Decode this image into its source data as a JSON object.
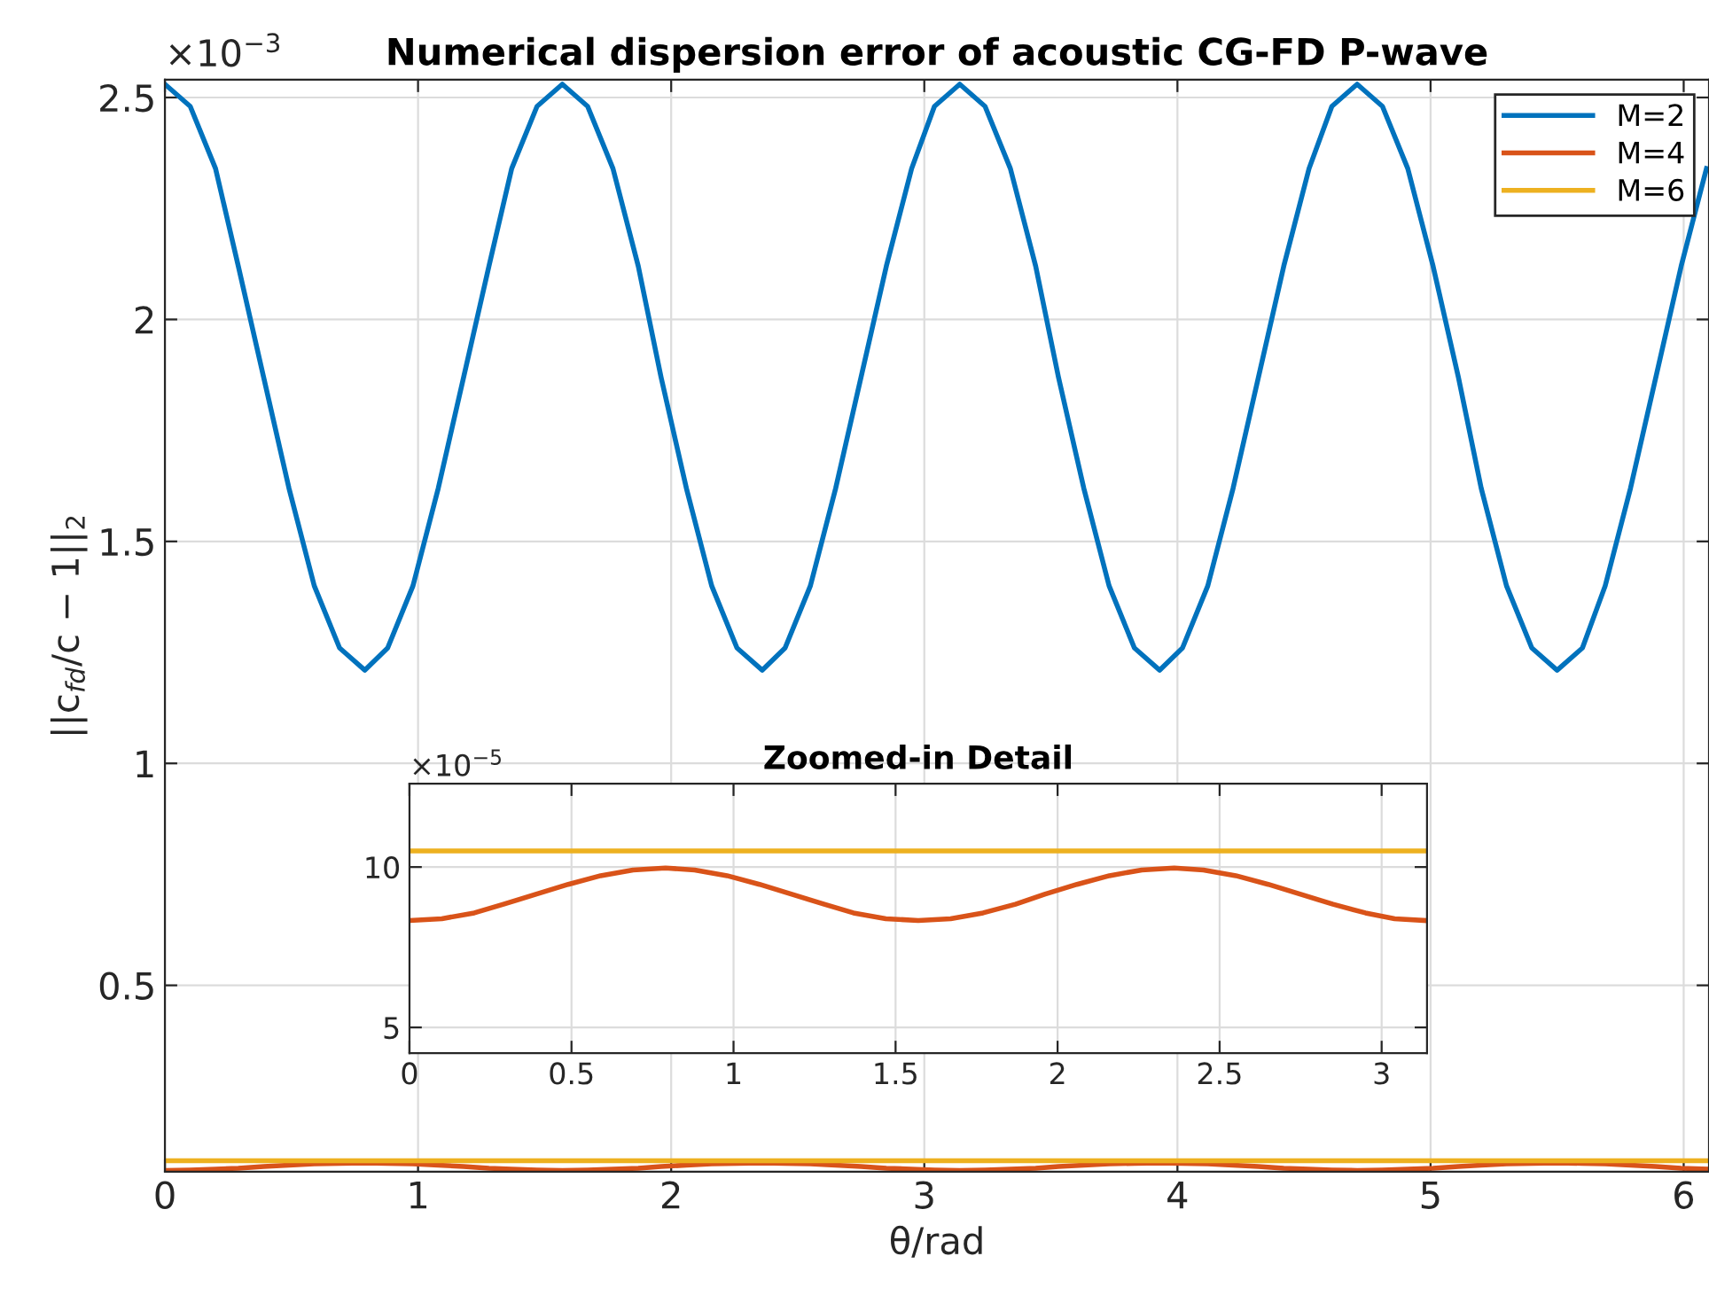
{
  "chart_data": [
    {
      "type": "line",
      "title": "Numerical dispersion error of acoustic CG-FD P-wave",
      "xlabel": "θ/rad",
      "ylabel": "||c$_{fd}$/c − 1||$_{2}$",
      "annotations": [
        "×10$^{−3}$"
      ],
      "xlim": [
        0,
        6.1
      ],
      "ylim": [
        0.08,
        2.54
      ],
      "xticks": [
        0,
        1,
        2,
        3,
        4,
        5,
        6
      ],
      "yticks": [
        0.5,
        1,
        1.5,
        2,
        2.5
      ],
      "grid": true,
      "legend": "top right",
      "series": [
        {
          "name": "M=2",
          "color": "#0072bd",
          "x": [
            0,
            0.1,
            0.2,
            0.29,
            0.39,
            0.49,
            0.59,
            0.69,
            0.79,
            0.88,
            0.98,
            1.08,
            1.18,
            1.28,
            1.37,
            1.47,
            1.57,
            1.67,
            1.77,
            1.87,
            1.96,
            2.06,
            2.16,
            2.26,
            2.36,
            2.45,
            2.55,
            2.65,
            2.75,
            2.85,
            2.95,
            3.04,
            3.14,
            3.24,
            3.34,
            3.44,
            3.53,
            3.63,
            3.73,
            3.83,
            3.93,
            4.02,
            4.12,
            4.22,
            4.32,
            4.42,
            4.52,
            4.61,
            4.71,
            4.81,
            4.91,
            5.01,
            5.11,
            5.2,
            5.3,
            5.4,
            5.5,
            5.6,
            5.69,
            5.79,
            5.89,
            5.99,
            6.09
          ],
          "values": [
            2.53,
            2.48,
            2.34,
            2.12,
            1.87,
            1.62,
            1.4,
            1.26,
            1.21,
            1.26,
            1.4,
            1.62,
            1.87,
            2.12,
            2.34,
            2.48,
            2.53,
            2.48,
            2.34,
            2.12,
            1.87,
            1.62,
            1.4,
            1.26,
            1.21,
            1.26,
            1.4,
            1.62,
            1.87,
            2.12,
            2.34,
            2.48,
            2.53,
            2.48,
            2.34,
            2.12,
            1.87,
            1.62,
            1.4,
            1.26,
            1.21,
            1.26,
            1.4,
            1.62,
            1.87,
            2.12,
            2.34,
            2.48,
            2.53,
            2.48,
            2.34,
            2.12,
            1.87,
            1.62,
            1.4,
            1.26,
            1.21,
            1.26,
            1.4,
            1.62,
            1.87,
            2.12,
            2.34
          ]
        },
        {
          "name": "M=4",
          "color": "#d95319",
          "x": [
            0,
            0.1,
            0.2,
            0.29,
            0.39,
            0.49,
            0.59,
            0.69,
            0.79,
            0.88,
            0.98,
            1.08,
            1.18,
            1.28,
            1.37,
            1.47,
            1.57,
            1.67,
            1.77,
            1.87,
            1.96,
            2.06,
            2.16,
            2.26,
            2.36,
            2.45,
            2.55,
            2.65,
            2.75,
            2.85,
            2.95,
            3.04,
            3.14,
            3.24,
            3.34,
            3.44,
            3.53,
            3.63,
            3.73,
            3.83,
            3.93,
            4.02,
            4.12,
            4.22,
            4.32,
            4.42,
            4.52,
            4.61,
            4.71,
            4.81,
            4.91,
            5.01,
            5.11,
            5.2,
            5.3,
            5.4,
            5.5,
            5.6,
            5.69,
            5.79,
            5.89,
            5.99,
            6.09
          ],
          "values": [
            0.083,
            0.084,
            0.086,
            0.088,
            0.092,
            0.095,
            0.098,
            0.099,
            0.1,
            0.099,
            0.098,
            0.095,
            0.092,
            0.088,
            0.086,
            0.084,
            0.083,
            0.084,
            0.086,
            0.088,
            0.092,
            0.095,
            0.098,
            0.099,
            0.1,
            0.099,
            0.098,
            0.095,
            0.092,
            0.088,
            0.086,
            0.084,
            0.083,
            0.084,
            0.086,
            0.088,
            0.092,
            0.095,
            0.098,
            0.099,
            0.1,
            0.099,
            0.098,
            0.095,
            0.092,
            0.088,
            0.086,
            0.084,
            0.083,
            0.084,
            0.086,
            0.088,
            0.092,
            0.095,
            0.098,
            0.099,
            0.1,
            0.099,
            0.098,
            0.095,
            0.092,
            0.088,
            0.086
          ]
        },
        {
          "name": "M=6",
          "color": "#edb120",
          "x": [
            0,
            6.1
          ],
          "values": [
            0.105,
            0.105
          ]
        }
      ]
    },
    {
      "type": "line",
      "title": "Zoomed-in Detail",
      "annotations": [
        "×10$^{−5}$"
      ],
      "xlim": [
        0,
        3.14
      ],
      "ylim": [
        4.2,
        12.6
      ],
      "xticks": [
        0,
        0.5,
        1,
        1.5,
        2,
        2.5,
        3
      ],
      "yticks": [
        5,
        10
      ],
      "grid": true,
      "series": [
        {
          "color": "#d95319",
          "x": [
            0,
            0.1,
            0.2,
            0.29,
            0.39,
            0.49,
            0.59,
            0.69,
            0.79,
            0.88,
            0.98,
            1.08,
            1.18,
            1.28,
            1.37,
            1.47,
            1.57,
            1.67,
            1.77,
            1.87,
            1.96,
            2.06,
            2.16,
            2.26,
            2.36,
            2.45,
            2.55,
            2.65,
            2.75,
            2.85,
            2.95,
            3.04,
            3.14
          ],
          "values": [
            8.33,
            8.39,
            8.57,
            8.84,
            9.15,
            9.46,
            9.73,
            9.91,
            9.97,
            9.91,
            9.73,
            9.46,
            9.15,
            8.84,
            8.57,
            8.39,
            8.33,
            8.39,
            8.57,
            8.84,
            9.15,
            9.46,
            9.73,
            9.91,
            9.97,
            9.91,
            9.73,
            9.46,
            9.15,
            8.84,
            8.57,
            8.39,
            8.33
          ]
        },
        {
          "color": "#edb120",
          "x": [
            0,
            3.14
          ],
          "values": [
            10.5,
            10.5
          ]
        }
      ]
    }
  ]
}
